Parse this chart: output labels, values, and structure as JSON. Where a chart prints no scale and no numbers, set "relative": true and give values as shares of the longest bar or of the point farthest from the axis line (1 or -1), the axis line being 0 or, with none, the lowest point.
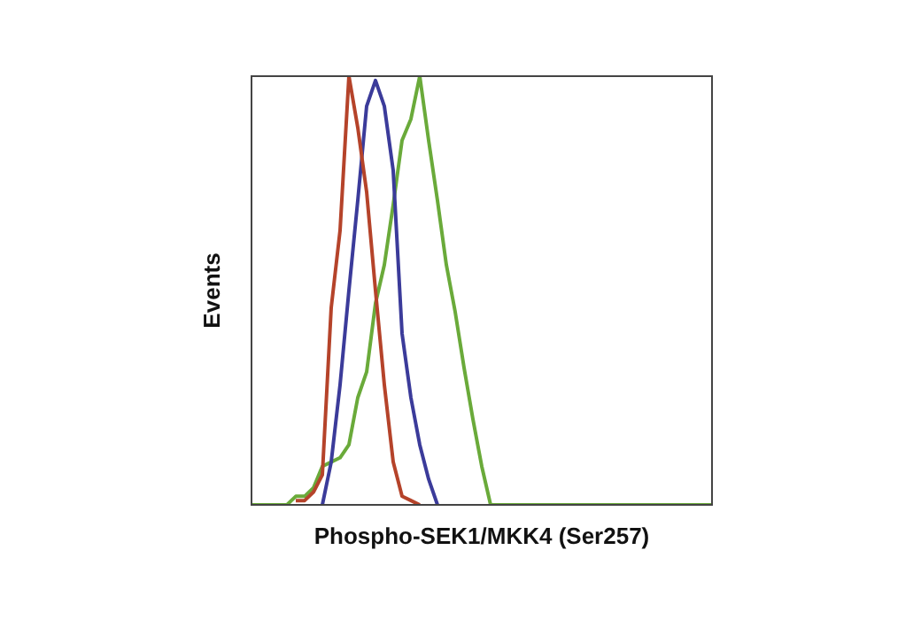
{
  "chart_data": {
    "type": "line",
    "relative": true,
    "xlabel": "Phospho-SEK1/MKK4 (Ser257)",
    "ylabel": "Events",
    "legend": false,
    "marker": "none",
    "line_style": "solid",
    "categories": [
      null,
      null,
      null,
      null,
      null,
      null,
      null,
      null,
      null,
      null,
      null,
      null,
      null,
      null,
      null,
      null,
      null,
      null,
      null,
      null,
      null,
      null,
      null,
      null,
      null,
      null,
      null,
      null,
      null,
      null,
      null,
      null,
      null,
      null,
      null,
      null,
      null,
      null,
      null,
      null,
      null,
      null,
      null,
      null,
      null,
      null,
      null,
      null,
      null,
      null,
      null,
      null,
      null
    ],
    "series": [
      {
        "color": "#b5432a",
        "values": [
          null,
          null,
          null,
          null,
          null,
          0.01,
          0.01,
          0.03,
          0.07,
          0.46,
          0.64,
          1,
          0.88,
          0.73,
          0.5,
          0.28,
          0.1,
          0.02,
          0.01,
          0,
          null,
          null,
          null,
          null,
          null,
          null,
          null,
          null,
          null,
          null,
          null,
          null,
          null,
          null,
          null,
          null,
          null,
          null,
          null,
          null,
          null,
          null,
          null,
          null,
          null,
          null,
          null,
          null,
          null,
          null,
          null,
          null,
          null
        ]
      },
      {
        "color": "#3b3b9a",
        "values": [
          null,
          null,
          null,
          null,
          null,
          null,
          null,
          null,
          0,
          0.1,
          0.28,
          0.5,
          0.71,
          0.93,
          0.99,
          0.93,
          0.78,
          0.4,
          0.25,
          0.14,
          0.06,
          0,
          null,
          null,
          null,
          null,
          null,
          null,
          null,
          null,
          null,
          null,
          null,
          null,
          null,
          null,
          null,
          null,
          null,
          null,
          null,
          null,
          null,
          null,
          null,
          null,
          null,
          null,
          null,
          null,
          null,
          null,
          null
        ]
      },
      {
        "color": "#6aaa3a",
        "values": [
          0,
          0,
          0,
          0,
          0,
          0.02,
          0.02,
          0.04,
          0.09,
          0.1,
          0.11,
          0.14,
          0.25,
          0.31,
          0.47,
          0.56,
          0.7,
          0.85,
          0.9,
          1,
          0.85,
          0.71,
          0.56,
          0.45,
          0.32,
          0.2,
          0.09,
          0,
          0,
          0,
          0,
          0,
          0,
          0,
          0,
          0,
          0,
          0,
          0,
          0,
          0,
          0,
          0,
          0,
          0,
          0,
          0,
          0,
          0,
          0,
          0,
          0,
          0
        ]
      }
    ]
  }
}
